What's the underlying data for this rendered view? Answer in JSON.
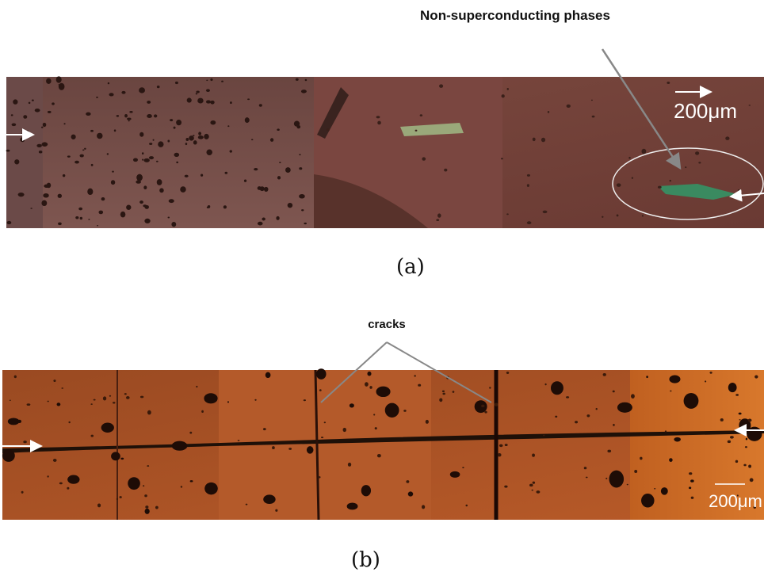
{
  "panels": [
    {
      "label": "(a)",
      "annotation": "Non-superconducting phases",
      "scale": "200μm"
    },
    {
      "label": "(b)",
      "annotation": "cracks",
      "scale": "200μm"
    }
  ]
}
